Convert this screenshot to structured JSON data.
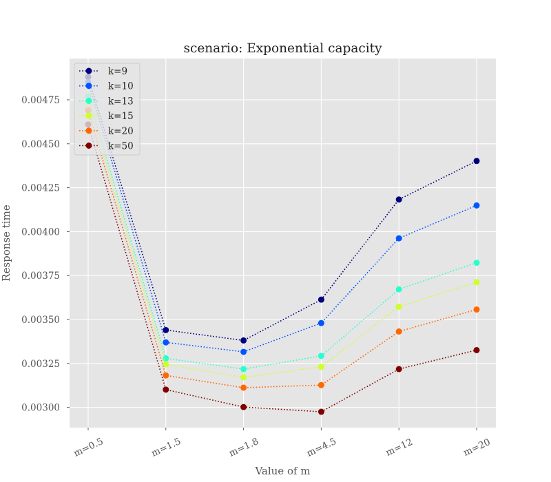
{
  "chart_data": {
    "type": "line",
    "title": "scenario: Exponential capacity",
    "xlabel": "Value of m",
    "ylabel": "Response time",
    "categories": [
      "m=0.5",
      "m=1.5",
      "m=1.8",
      "m=4.5",
      "m=12",
      "m=20"
    ],
    "y_ticks": [
      "0.00300",
      "0.00325",
      "0.00350",
      "0.00375",
      "0.00400",
      "0.00425",
      "0.00450",
      "0.00475"
    ],
    "y_tick_values": [
      0.003,
      0.00325,
      0.0035,
      0.00375,
      0.004,
      0.00425,
      0.0045,
      0.00475
    ],
    "ylim": [
      0.002885,
      0.004985
    ],
    "grid": true,
    "legend_position": "top-left",
    "line_style": "dotted",
    "series": [
      {
        "name": "k=9",
        "color": "#00007f",
        "values": [
          0.00488,
          0.00344,
          0.003381,
          0.003613,
          0.004183,
          0.004402
        ]
      },
      {
        "name": "k=10",
        "color": "#0055ff",
        "values": [
          0.00485,
          0.00337,
          0.003316,
          0.00348,
          0.003962,
          0.004149
        ]
      },
      {
        "name": "k=13",
        "color": "#29ffce",
        "values": [
          0.00477,
          0.003279,
          0.003218,
          0.003293,
          0.003672,
          0.003823
        ]
      },
      {
        "name": "k=15",
        "color": "#ceff29",
        "values": [
          0.00473,
          0.003245,
          0.003171,
          0.003231,
          0.003573,
          0.003712
        ]
      },
      {
        "name": "k=20",
        "color": "#ff6800",
        "values": [
          0.00469,
          0.003182,
          0.003112,
          0.003127,
          0.003432,
          0.003557
        ]
      },
      {
        "name": "k=50",
        "color": "#7f0000",
        "values": [
          0.00461,
          0.003101,
          0.003002,
          0.002975,
          0.003218,
          0.003326
        ]
      }
    ]
  }
}
